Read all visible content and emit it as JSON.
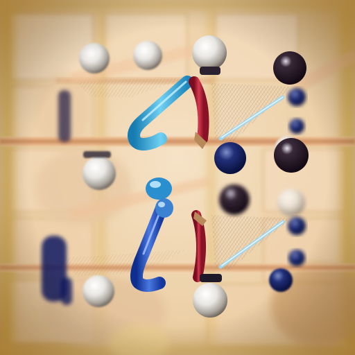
{
  "scene": {
    "description_free": true,
    "palette": {
      "background_warm": "#f1d6b3",
      "background_golden": "#d9b25a",
      "cell_light": "#f5dcc0",
      "wood_bar": "#d9a06c",
      "cyan_bead": "#3aa7d8",
      "royal_blue_bead": "#1f4fbf",
      "navy_bead": "#0e1f6b",
      "pearl_bead": "#f2f2f2",
      "crimson_rod": "#b52035",
      "sepia": "#6a4a38"
    },
    "objects": {
      "pearls": 8,
      "navy_beads": 7,
      "rods": 4,
      "hooks": 2,
      "fans": 2
    }
  }
}
